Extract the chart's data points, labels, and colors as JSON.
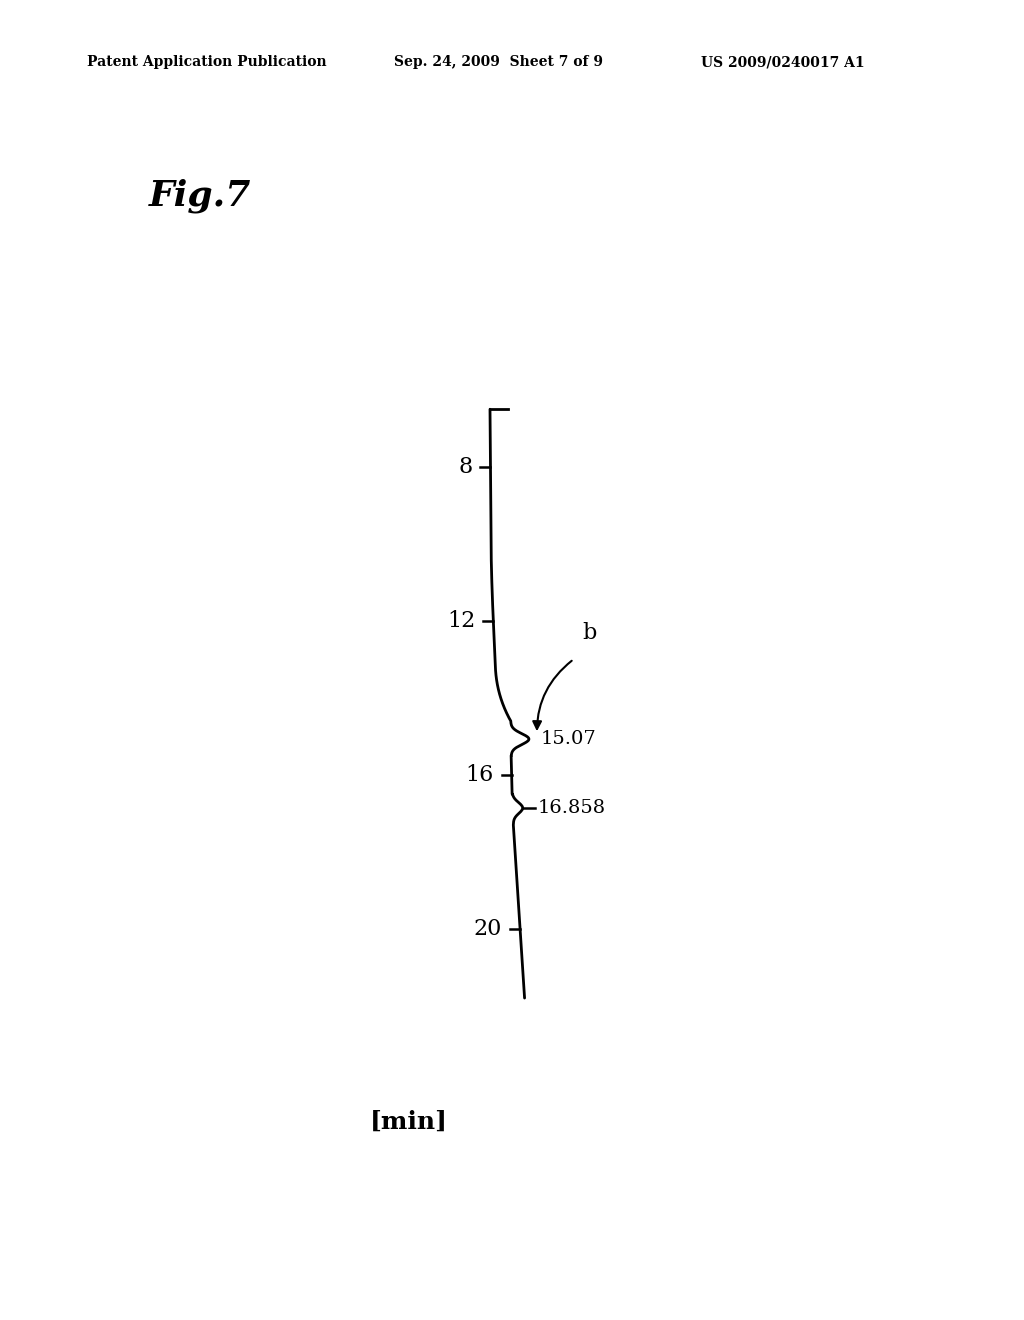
{
  "fig_label": "Fig.7",
  "header_left": "Patent Application Publication",
  "header_center": "Sep. 24, 2009  Sheet 7 of 9",
  "header_right": "US 2009/0240017 A1",
  "xlabel": "[min]",
  "tick_values": [
    8,
    12,
    16,
    20
  ],
  "peak1_time": 15.07,
  "peak2_time": 16.858,
  "peak1_label": "15.07",
  "peak2_label": "16.858",
  "arrow_label": "b",
  "background_color": "#ffffff",
  "line_color": "#000000",
  "t_min": 6.0,
  "t_max": 22.5
}
